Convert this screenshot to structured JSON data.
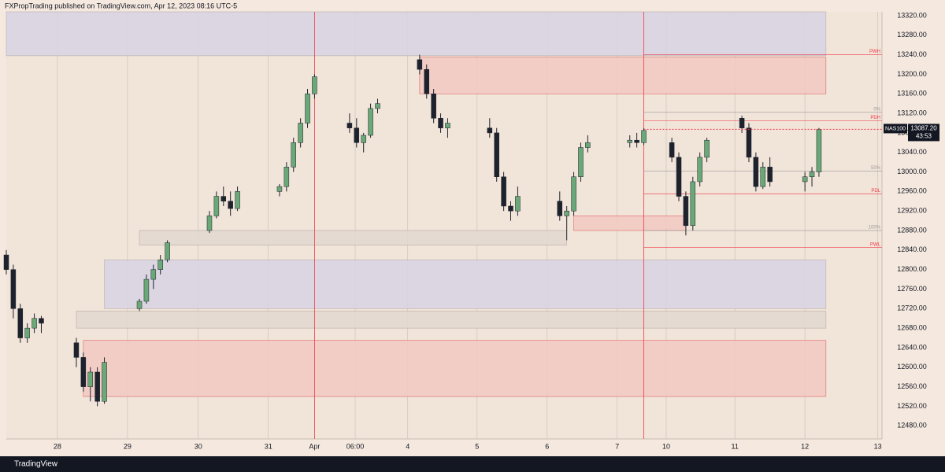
{
  "header": {
    "text": "FXPropTrading published on TradingView.com, Apr 12, 2023 08:16 UTC-5"
  },
  "footer": {
    "brand": "TradingView"
  },
  "chart_data": {
    "type": "candlestick",
    "symbol": "NAS100",
    "last_price": {
      "value": 13087.2,
      "label": "13087.20"
    },
    "countdown": "43:53",
    "up_color": "#6aa878",
    "down_color": "#1e222d",
    "xlim": [
      0,
      125
    ],
    "ylim": [
      12453,
      13328
    ],
    "xticks": [
      {
        "value": 7.3,
        "label": "28"
      },
      {
        "value": 17.3,
        "label": "29"
      },
      {
        "value": 27.4,
        "label": "30"
      },
      {
        "value": 37.4,
        "label": "31"
      },
      {
        "value": 44.0,
        "label": "Apr"
      },
      {
        "value": 49.8,
        "label": "06:00"
      },
      {
        "value": 57.3,
        "label": "4"
      },
      {
        "value": 67.2,
        "label": "5"
      },
      {
        "value": 77.2,
        "label": "6"
      },
      {
        "value": 87.2,
        "label": "7"
      },
      {
        "value": 94.2,
        "label": "10"
      },
      {
        "value": 104.0,
        "label": "11"
      },
      {
        "value": 114.0,
        "label": "12"
      },
      {
        "value": 124.4,
        "label": "13"
      }
    ],
    "yticks": [
      {
        "value": 12480,
        "label": "12480.00"
      },
      {
        "value": 12520,
        "label": "12520.00"
      },
      {
        "value": 12560,
        "label": "12560.00"
      },
      {
        "value": 12600,
        "label": "12600.00"
      },
      {
        "value": 12640,
        "label": "12640.00"
      },
      {
        "value": 12680,
        "label": "12680.00"
      },
      {
        "value": 12720,
        "label": "12720.00"
      },
      {
        "value": 12760,
        "label": "12760.00"
      },
      {
        "value": 12800,
        "label": "12800.00"
      },
      {
        "value": 12840,
        "label": "12840.00"
      },
      {
        "value": 12880,
        "label": "12880.00"
      },
      {
        "value": 12920,
        "label": "12920.00"
      },
      {
        "value": 12960,
        "label": "12960.00"
      },
      {
        "value": 13000,
        "label": "13000.00"
      },
      {
        "value": 13040,
        "label": "13040.00"
      },
      {
        "value": 13080,
        "label": "13080.00"
      },
      {
        "value": 13120,
        "label": "13120.00"
      },
      {
        "value": 13160,
        "label": "13160.00"
      },
      {
        "value": 13200,
        "label": "13200.00"
      },
      {
        "value": 13240,
        "label": "13240.00"
      },
      {
        "value": 13280,
        "label": "13280.00"
      },
      {
        "value": 13320,
        "label": "13320.00"
      }
    ],
    "session_lines": [
      44.0,
      91.0
    ],
    "zones": [
      {
        "from": 0,
        "to": 117,
        "top": 13328,
        "bottom": 13238,
        "color": "#d8d4e4"
      },
      {
        "from": 59,
        "to": 117,
        "top": 13235,
        "bottom": 13160,
        "color": "#f2c9c1"
      },
      {
        "from": 14,
        "to": 117,
        "top": 12820,
        "bottom": 12720,
        "color": "#d8d4e4"
      },
      {
        "from": 10,
        "to": 117,
        "top": 12715,
        "bottom": 12680,
        "color": "#e2d8cf"
      },
      {
        "from": 11,
        "to": 117,
        "top": 12655,
        "bottom": 12540,
        "color": "#f2c9c1"
      },
      {
        "from": 19,
        "to": 80,
        "top": 12880,
        "bottom": 12850,
        "color": "#e2d8cf"
      },
      {
        "from": 81,
        "to": 97,
        "top": 12910,
        "bottom": 12880,
        "color": "#f2c9c1"
      }
    ],
    "levels": [
      {
        "label": "PWH",
        "value": 13240,
        "color": "#f23645"
      },
      {
        "label": "PDH",
        "value": 13105,
        "color": "#f23645"
      },
      {
        "label": "PDL",
        "value": 12955,
        "color": "#f23645"
      },
      {
        "label": "PWL",
        "value": 12845,
        "color": "#f23645"
      },
      {
        "label": "0%",
        "value": 13122,
        "color": "#9a9a9a"
      },
      {
        "label": "50%",
        "value": 13002,
        "color": "#9a9a9a"
      },
      {
        "label": "100%",
        "value": 12880,
        "color": "#9a9a9a"
      }
    ],
    "x": [
      0,
      1,
      2,
      3,
      4,
      5,
      10,
      11,
      12,
      13,
      14,
      19,
      20,
      21,
      22,
      23,
      29,
      30,
      31,
      32,
      33,
      39,
      40,
      41,
      42,
      43,
      44,
      49,
      50,
      51,
      52,
      53,
      59,
      60,
      61,
      62,
      63,
      69,
      70,
      71,
      72,
      73,
      79,
      80,
      81,
      82,
      83,
      89,
      90,
      91,
      95,
      96,
      97,
      98,
      99,
      100,
      105,
      106,
      107,
      108,
      109,
      114,
      115,
      116
    ],
    "open": [
      12830,
      12800,
      12720,
      12660,
      12680,
      12700,
      12650,
      12620,
      12560,
      12590,
      12530,
      12720,
      12735,
      12780,
      12800,
      12820,
      12880,
      12910,
      12950,
      12940,
      12925,
      12960,
      12970,
      13010,
      13060,
      13100,
      13160,
      13100,
      13090,
      13060,
      13075,
      13130,
      13230,
      13210,
      13160,
      13110,
      13090,
      13090,
      13080,
      12990,
      12930,
      12920,
      12940,
      12910,
      12920,
      12990,
      13050,
      13060,
      13065,
      13060,
      13060,
      13030,
      12950,
      12890,
      12980,
      13030,
      13110,
      13090,
      13030,
      12970,
      13010,
      12980,
      12990,
      13000
    ],
    "high": [
      12840,
      12810,
      12730,
      12690,
      12710,
      12705,
      12660,
      12630,
      12600,
      12600,
      12620,
      12740,
      12790,
      12810,
      12830,
      12860,
      12920,
      12960,
      12970,
      12960,
      12970,
      12975,
      13020,
      13070,
      13110,
      13170,
      13200,
      13120,
      13110,
      13080,
      13140,
      13150,
      13240,
      13220,
      13170,
      13120,
      13110,
      13110,
      13090,
      13000,
      12940,
      12970,
      12960,
      12930,
      13000,
      13060,
      13075,
      13075,
      13080,
      13090,
      13070,
      13040,
      12960,
      12990,
      13040,
      13070,
      13115,
      13100,
      13040,
      13020,
      13030,
      13000,
      13010,
      13090
    ],
    "low": [
      12790,
      12700,
      12650,
      12650,
      12670,
      12670,
      12600,
      12550,
      12530,
      12520,
      12525,
      12715,
      12730,
      12760,
      12790,
      12815,
      12875,
      12905,
      12930,
      12910,
      12920,
      12950,
      12960,
      13000,
      13050,
      13090,
      13150,
      13080,
      13050,
      13040,
      13070,
      13120,
      13200,
      13150,
      13100,
      13080,
      13070,
      13070,
      12980,
      12920,
      12900,
      12910,
      12900,
      12860,
      12910,
      12980,
      13040,
      13050,
      13050,
      13055,
      13020,
      12940,
      12870,
      12880,
      12970,
      13020,
      13080,
      13020,
      12960,
      12965,
      12970,
      12960,
      12970,
      12990
    ],
    "close": [
      12800,
      12720,
      12660,
      12680,
      12700,
      12690,
      12620,
      12560,
      12590,
      12530,
      12610,
      12735,
      12780,
      12800,
      12820,
      12855,
      12910,
      12950,
      12940,
      12925,
      12960,
      12970,
      13010,
      13060,
      13100,
      13160,
      13195,
      13090,
      13060,
      13075,
      13130,
      13140,
      13210,
      13160,
      13110,
      13090,
      13100,
      13080,
      12990,
      12930,
      12920,
      12950,
      12910,
      12920,
      12990,
      13050,
      13060,
      13065,
      13060,
      13085,
      13030,
      12950,
      12890,
      12980,
      13030,
      13065,
      13090,
      13030,
      12970,
      13010,
      12980,
      12990,
      13000,
      13087.2
    ]
  }
}
